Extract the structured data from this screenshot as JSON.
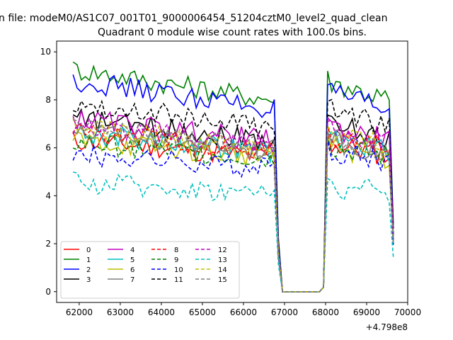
{
  "figure": {
    "suptitle": "n file: modeM0/AS1C07_001T01_9000006454_51204cztM0_level2_quad_clean",
    "offset_label": "+4.798e8"
  },
  "chart_data": {
    "type": "line",
    "title": "Quadrant 0 module wise count rates with 100.0s bins.",
    "xlabel": "",
    "ylabel": "",
    "x_offset": 479800000,
    "xlim": [
      61450,
      70000
    ],
    "ylim": [
      -0.45,
      10.45
    ],
    "xticks": [
      62000,
      63000,
      64000,
      65000,
      66000,
      67000,
      68000,
      69000,
      70000
    ],
    "yticks": [
      0,
      2,
      4,
      6,
      8,
      10
    ],
    "xtick_labels": [
      "62000",
      "63000",
      "64000",
      "65000",
      "66000",
      "67000",
      "68000",
      "69000",
      "70000"
    ],
    "ytick_labels": [
      "0",
      "2",
      "4",
      "6",
      "8",
      "10"
    ],
    "grid": false,
    "legend": {
      "placement": "lower-left",
      "columns": 4
    },
    "x_ranges": {
      "seg1": [
        61850,
        66750,
        100
      ],
      "gap": [
        66850,
        67950,
        100
      ],
      "seg2": [
        68050,
        69550,
        100
      ],
      "end": 69650
    },
    "series": [
      {
        "name": "0",
        "color": "#ff0000",
        "style": "solid",
        "base": 5.6,
        "late": 5.7,
        "edge": 0.08
      },
      {
        "name": "1",
        "color": "#008000",
        "style": "solid",
        "base": 8.0,
        "late": 8.0,
        "edge": 0.1
      },
      {
        "name": "2",
        "color": "#0000ff",
        "style": "solid",
        "base": 7.6,
        "late": 7.5,
        "edge": 0.1
      },
      {
        "name": "3",
        "color": "#000000",
        "style": "solid",
        "base": 6.3,
        "late": 6.4,
        "edge": 0.09
      },
      {
        "name": "4",
        "color": "#bf00bf",
        "style": "solid",
        "base": 6.3,
        "late": 6.3,
        "edge": 0.09
      },
      {
        "name": "5",
        "color": "#00bfbf",
        "style": "solid",
        "base": 5.8,
        "late": 5.9,
        "edge": 0.09
      },
      {
        "name": "6",
        "color": "#bfbf00",
        "style": "solid",
        "base": 5.6,
        "late": 5.6,
        "edge": 0.08
      },
      {
        "name": "7",
        "color": "#808080",
        "style": "solid",
        "base": 5.9,
        "late": 5.8,
        "edge": 0.09
      },
      {
        "name": "8",
        "color": "#ff0000",
        "style": "dashed",
        "base": 5.9,
        "late": 6.0,
        "edge": 0.09
      },
      {
        "name": "9",
        "color": "#008000",
        "style": "dashed",
        "base": 5.5,
        "late": 5.6,
        "edge": 0.08
      },
      {
        "name": "10",
        "color": "#0000ff",
        "style": "dashed",
        "base": 5.1,
        "late": 5.5,
        "edge": 0.08
      },
      {
        "name": "11",
        "color": "#000000",
        "style": "dashed",
        "base": 6.8,
        "late": 6.9,
        "edge": 0.1
      },
      {
        "name": "12",
        "color": "#bf00bf",
        "style": "dashed",
        "base": 6.1,
        "late": 6.2,
        "edge": 0.09
      },
      {
        "name": "13",
        "color": "#00bfbf",
        "style": "dashed",
        "base": 4.1,
        "late": 4.1,
        "edge": 0.07
      },
      {
        "name": "14",
        "color": "#bfbf00",
        "style": "dashed",
        "base": 6.0,
        "late": 6.0,
        "edge": 0.09
      },
      {
        "name": "15",
        "color": "#808080",
        "style": "dashed",
        "base": 6.0,
        "late": 5.8,
        "edge": 0.09
      }
    ]
  }
}
